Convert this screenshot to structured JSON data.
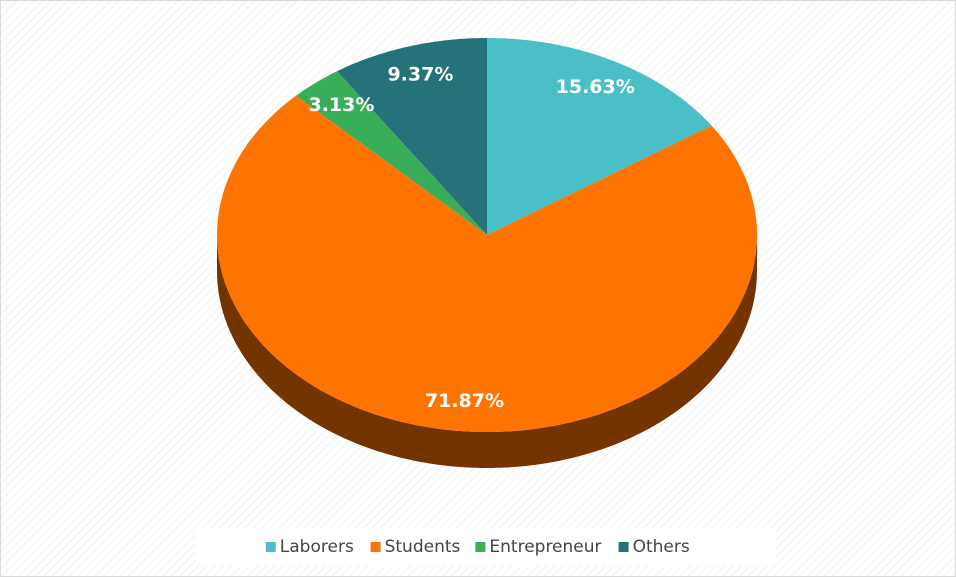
{
  "chart_data": {
    "type": "pie",
    "categories": [
      "Laborers",
      "Students",
      "Entrepreneur",
      "Others"
    ],
    "values": [
      15.63,
      71.87,
      3.13,
      9.37
    ],
    "value_labels": [
      "15.63%",
      "71.87%",
      "3.13%",
      "9.37%"
    ],
    "colors": [
      "#4bbfc8",
      "#ff7300",
      "#3aad58",
      "#26727a"
    ],
    "legend": "bottom"
  }
}
